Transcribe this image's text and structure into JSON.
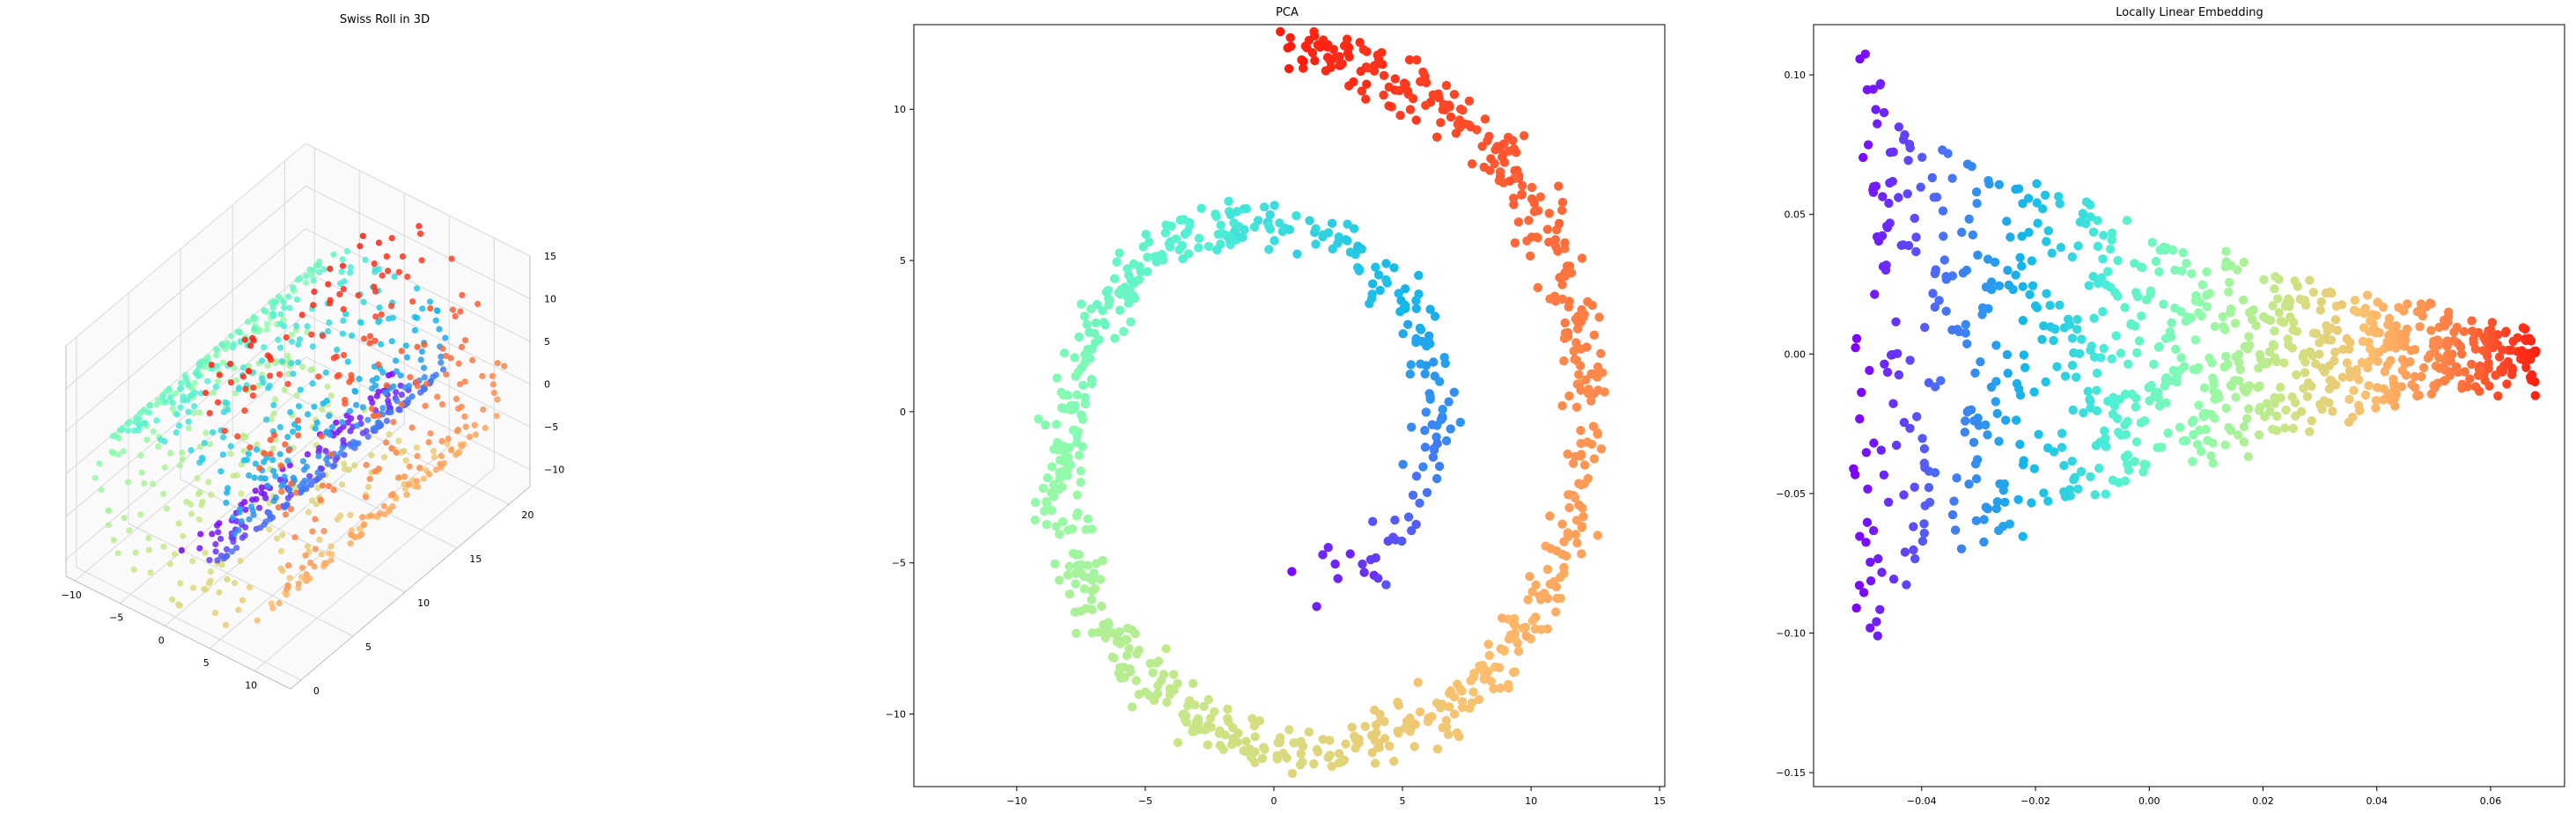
{
  "chart_data": [
    {
      "type": "scatter3d",
      "title": "Swiss Roll in 3D",
      "xlabel": "",
      "ylabel": "",
      "zlabel": "",
      "xlim": [
        -11,
        14
      ],
      "ylim": [
        -1,
        22
      ],
      "zlim": [
        -12,
        15
      ],
      "x_ticks": [
        "−10",
        "−5",
        "0",
        "5",
        "10"
      ],
      "y_ticks": [
        "0",
        "5",
        "10",
        "15",
        "20"
      ],
      "z_ticks": [
        "−10",
        "−5",
        "0",
        "5",
        "10",
        "15"
      ],
      "colormap": [
        "#8000ff",
        "#4b6ef8",
        "#14b7ea",
        "#4ef0d5",
        "#8dfcab",
        "#c9e685",
        "#fdbd6d",
        "#ff7a42",
        "#ff1a0e"
      ],
      "description_of_points": "about 1000 points on a swiss-roll manifold colored by position along the roll",
      "grid": true
    },
    {
      "type": "scatter",
      "title": "PCA",
      "xlabel": "",
      "ylabel": "",
      "xlim": [
        -14,
        15.2
      ],
      "ylim": [
        -12.4,
        12.8
      ],
      "x_ticks": [
        -10,
        -5,
        0,
        5,
        10,
        15
      ],
      "x_tick_labels": [
        "−10",
        "−5",
        "0",
        "5",
        "10",
        "15"
      ],
      "y_ticks": [
        -10,
        -5,
        0,
        5,
        10
      ],
      "y_tick_labels": [
        "−10",
        "−5",
        "0",
        "5",
        "10"
      ],
      "spiral": {
        "t_start": 4.7,
        "t_end": 14.1,
        "center": [
          0.5,
          -1.0
        ]
      },
      "grid": false
    },
    {
      "type": "scatter",
      "title": "Locally Linear Embedding",
      "xlabel": "",
      "ylabel": "",
      "xlim": [
        -0.059,
        0.073
      ],
      "ylim": [
        -0.155,
        0.118
      ],
      "x_ticks": [
        -0.04,
        -0.02,
        0.0,
        0.02,
        0.04,
        0.06
      ],
      "x_tick_labels": [
        "−0.04",
        "−0.02",
        "0.00",
        "0.02",
        "0.04",
        "0.06"
      ],
      "y_ticks": [
        -0.15,
        -0.1,
        -0.05,
        0.0,
        0.05,
        0.1
      ],
      "y_tick_labels": [
        "−0.15",
        "−0.10",
        "−0.05",
        "0.00",
        "0.05",
        "0.10"
      ],
      "grid": false
    }
  ]
}
